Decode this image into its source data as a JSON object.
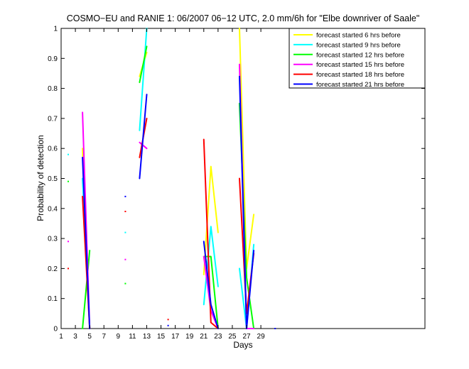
{
  "chart_data": {
    "type": "line",
    "title": "COSMO−EU and RANIE 1: 06/2007 06−12 UTC, 2.0 mm/6h for \"Elbe downriver of Saale\"",
    "xlabel": "Days",
    "ylabel": "Probability of detection",
    "xlim": [
      1,
      52
    ],
    "ylim": [
      0,
      1
    ],
    "x_ticks": [
      1,
      3,
      5,
      7,
      9,
      11,
      13,
      15,
      17,
      19,
      21,
      23,
      25,
      27,
      29
    ],
    "y_ticks": [
      0,
      0.1,
      0.2,
      0.3,
      0.4,
      0.5,
      0.6,
      0.7,
      0.8,
      0.9,
      1
    ],
    "x_tick_labels": [
      "1",
      "3",
      "5",
      "7",
      "9",
      "11",
      "13",
      "15",
      "17",
      "19",
      "21",
      "23",
      "25",
      "27",
      "29"
    ],
    "y_tick_labels": [
      "0",
      "0.1",
      "0.2",
      "0.3",
      "0.4",
      "0.5",
      "0.6",
      "0.7",
      "0.8",
      "0.9",
      "1"
    ],
    "grid": false,
    "legend_position": "top-right",
    "series": [
      {
        "name": "forecast started 6 hrs before",
        "color": "#ffff00",
        "segments": [
          [
            [
              4,
              0.6
            ],
            [
              4.5,
              0.25
            ],
            [
              5,
              0
            ]
          ],
          [
            [
              12,
              0.84
            ],
            [
              13,
              0.92
            ]
          ],
          [
            [
              21,
              0.18
            ],
            [
              22,
              0.54
            ],
            [
              23,
              0.32
            ]
          ],
          [
            [
              26,
              1.0
            ],
            [
              27,
              0.2
            ],
            [
              28,
              0.38
            ]
          ]
        ],
        "points": []
      },
      {
        "name": "forecast started 9 hrs before",
        "color": "#00ffff",
        "segments": [
          [
            [
              4,
              0.5
            ],
            [
              5,
              0.0
            ]
          ],
          [
            [
              12,
              0.66
            ],
            [
              13,
              1.0
            ]
          ],
          [
            [
              21,
              0.08
            ],
            [
              22,
              0.34
            ],
            [
              23,
              0.14
            ]
          ],
          [
            [
              26,
              0.2
            ],
            [
              27,
              0.0
            ],
            [
              28,
              0.28
            ]
          ]
        ],
        "points": [
          [
            2,
            0.58
          ],
          [
            10,
            0.32
          ]
        ]
      },
      {
        "name": "forecast started 12 hrs before",
        "color": "#00ff00",
        "segments": [
          [
            [
              4,
              0.0
            ],
            [
              5,
              0.26
            ]
          ],
          [
            [
              12,
              0.82
            ],
            [
              13,
              0.94
            ]
          ],
          [
            [
              21,
              0.24
            ],
            [
              22,
              0.24
            ],
            [
              23,
              0.0
            ]
          ],
          [
            [
              26,
              0.75
            ],
            [
              27,
              0.17
            ],
            [
              28,
              0.0
            ]
          ]
        ],
        "points": [
          [
            2,
            0.49
          ],
          [
            10,
            0.15
          ]
        ]
      },
      {
        "name": "forecast started 15 hrs before",
        "color": "#ff00ff",
        "segments": [
          [
            [
              4,
              0.72
            ],
            [
              5,
              0.0
            ]
          ],
          [
            [
              12,
              0.62
            ],
            [
              13,
              0.6
            ]
          ],
          [
            [
              21,
              0.24
            ],
            [
              22,
              0.06
            ],
            [
              23,
              0.0
            ]
          ],
          [
            [
              26,
              0.88
            ],
            [
              27,
              0.0
            ],
            [
              28,
              0.0
            ]
          ]
        ],
        "points": [
          [
            2,
            0.29
          ],
          [
            10,
            0.23
          ]
        ]
      },
      {
        "name": "forecast started 18 hrs before",
        "color": "#ff0000",
        "segments": [
          [
            [
              4,
              0.44
            ],
            [
              5,
              0.0
            ]
          ],
          [
            [
              12,
              0.57
            ],
            [
              13,
              0.7
            ]
          ],
          [
            [
              21,
              0.63
            ],
            [
              22,
              0.02
            ],
            [
              23,
              0.0
            ]
          ],
          [
            [
              26,
              0.5
            ],
            [
              27,
              0.05
            ],
            [
              28,
              0.25
            ]
          ]
        ],
        "points": [
          [
            2,
            0.2
          ],
          [
            10,
            0.39
          ],
          [
            16,
            0.03
          ]
        ]
      },
      {
        "name": "forecast started 21 hrs before",
        "color": "#0000ff",
        "segments": [
          [
            [
              4,
              0.57
            ],
            [
              5,
              0.0
            ]
          ],
          [
            [
              12,
              0.5
            ],
            [
              13,
              0.78
            ]
          ],
          [
            [
              21,
              0.29
            ],
            [
              22,
              0.08
            ],
            [
              23,
              0.0
            ]
          ],
          [
            [
              26,
              0.84
            ],
            [
              27,
              0.0
            ],
            [
              28,
              0.26
            ]
          ]
        ],
        "points": [
          [
            10,
            0.44
          ],
          [
            16,
            0.01
          ],
          [
            31,
            0.0
          ]
        ]
      }
    ]
  }
}
